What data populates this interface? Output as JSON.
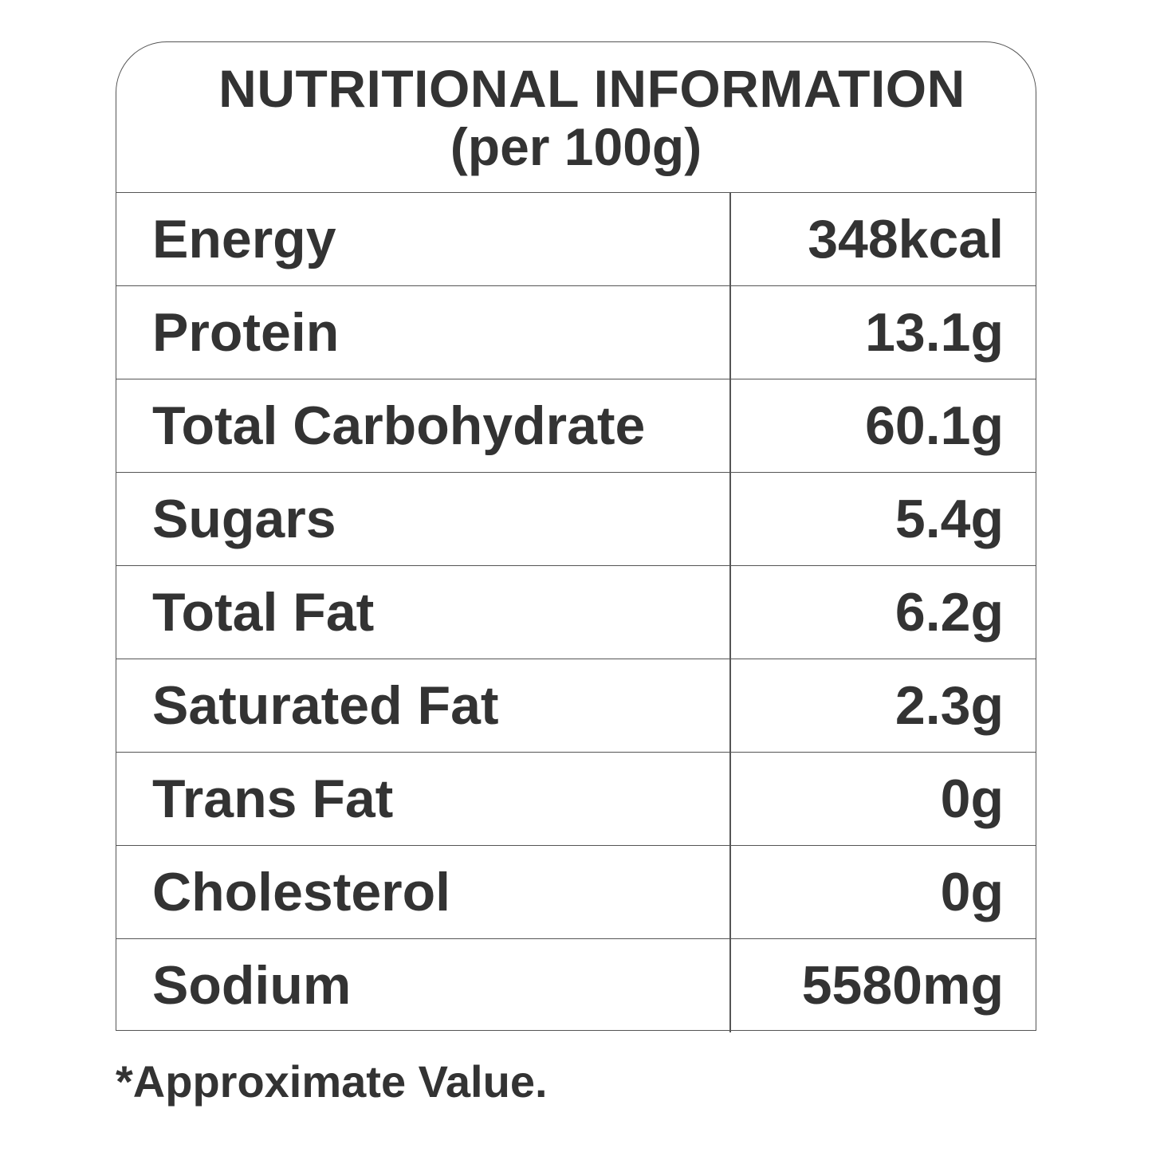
{
  "header": {
    "title": "NUTRITIONAL INFORMATION",
    "subtitle": "(per 100g)"
  },
  "rows": [
    {
      "label": "Energy",
      "value": "348kcal"
    },
    {
      "label": "Protein",
      "value": "13.1g"
    },
    {
      "label": "Total Carbohydrate",
      "value": "60.1g"
    },
    {
      "label": "Sugars",
      "value": "5.4g"
    },
    {
      "label": "Total Fat",
      "value": "6.2g"
    },
    {
      "label": "Saturated Fat",
      "value": "2.3g"
    },
    {
      "label": "Trans Fat",
      "value": "0g"
    },
    {
      "label": "Cholesterol",
      "value": "0g"
    },
    {
      "label": "Sodium",
      "value": "5580mg"
    }
  ],
  "footnote": "*Approximate Value.",
  "colors": {
    "text": "#333333",
    "border": "#555555",
    "background": "#ffffff"
  }
}
